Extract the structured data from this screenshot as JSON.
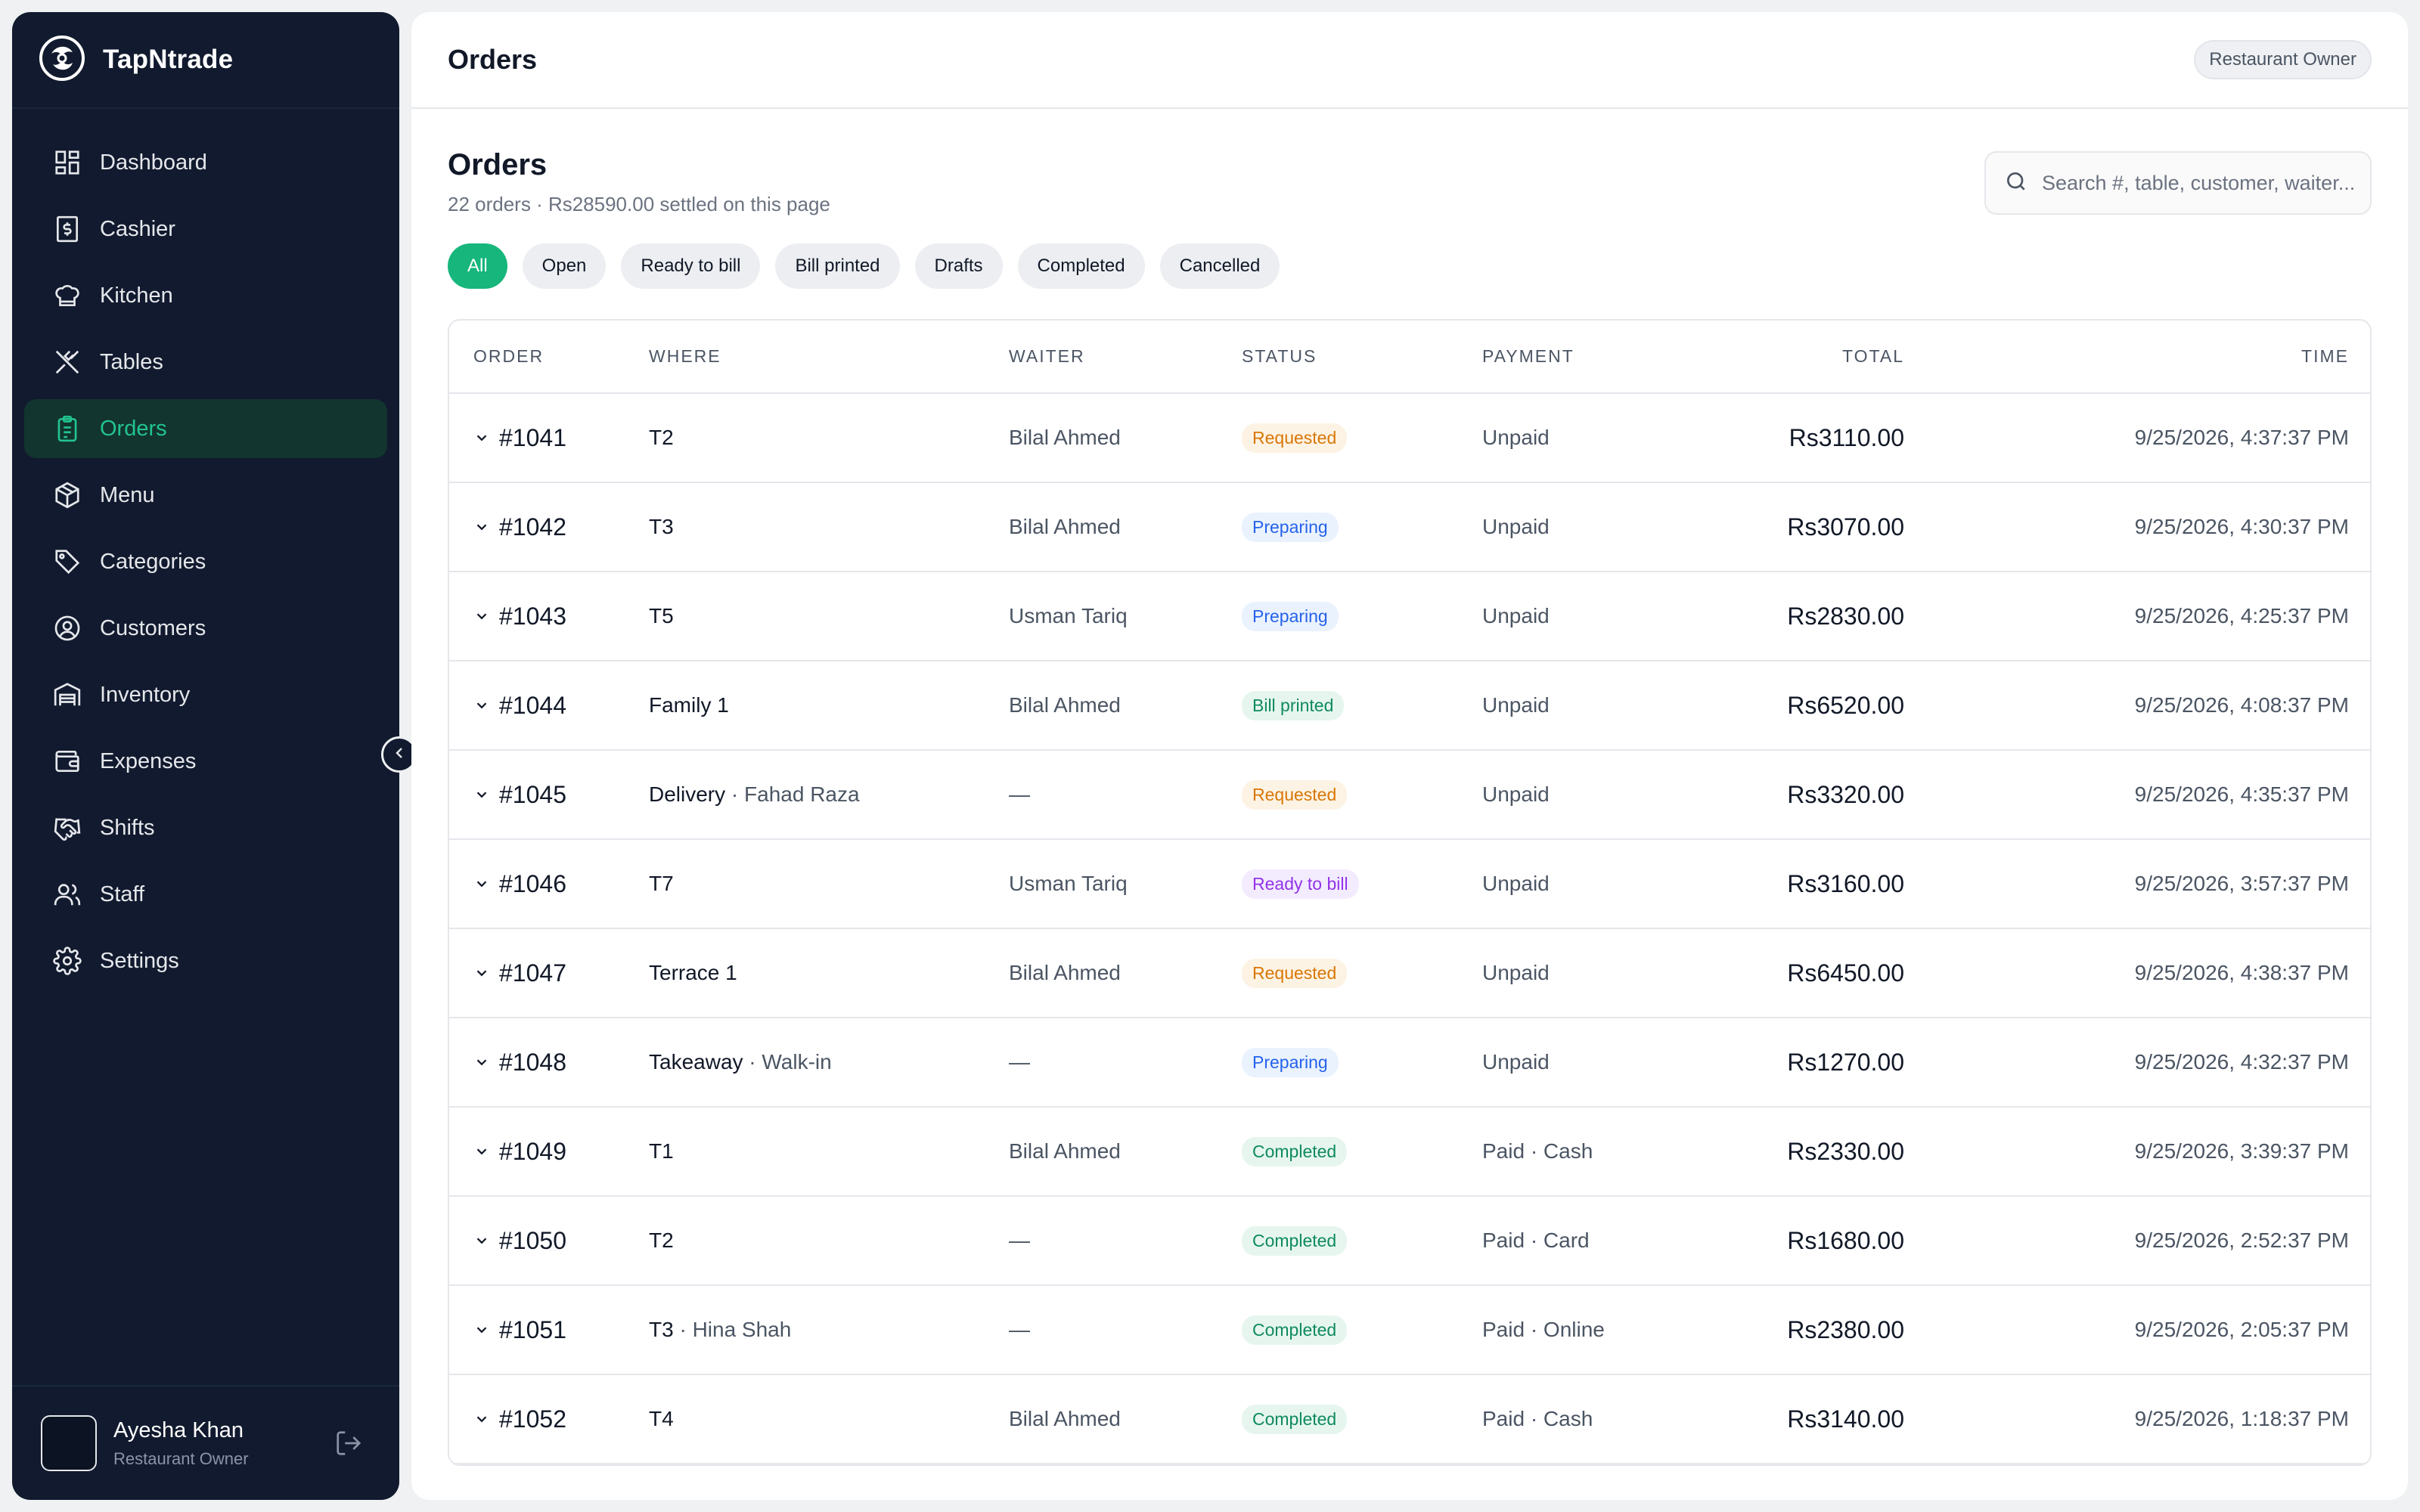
{
  "app": {
    "name": "TapNtrade"
  },
  "sidebar": {
    "items": [
      {
        "label": "Dashboard",
        "icon": "dashboard-icon",
        "active": false
      },
      {
        "label": "Cashier",
        "icon": "cashier-icon",
        "active": false
      },
      {
        "label": "Kitchen",
        "icon": "chef-hat-icon",
        "active": false
      },
      {
        "label": "Tables",
        "icon": "utensils-icon",
        "active": false
      },
      {
        "label": "Orders",
        "icon": "clipboard-icon",
        "active": true
      },
      {
        "label": "Menu",
        "icon": "box-icon",
        "active": false
      },
      {
        "label": "Categories",
        "icon": "tag-icon",
        "active": false
      },
      {
        "label": "Customers",
        "icon": "user-circle-icon",
        "active": false
      },
      {
        "label": "Inventory",
        "icon": "warehouse-icon",
        "active": false
      },
      {
        "label": "Expenses",
        "icon": "wallet-icon",
        "active": false
      },
      {
        "label": "Shifts",
        "icon": "handshake-icon",
        "active": false
      },
      {
        "label": "Staff",
        "icon": "users-icon",
        "active": false
      },
      {
        "label": "Settings",
        "icon": "gear-icon",
        "active": false
      }
    ]
  },
  "user": {
    "name": "Ayesha Khan",
    "role": "Restaurant Owner"
  },
  "topbar": {
    "title": "Orders",
    "role_badge": "Restaurant Owner"
  },
  "page": {
    "title": "Orders",
    "subtitle": "22 orders · Rs28590.00 settled on this page",
    "search_placeholder": "Search #, table, customer, waiter..."
  },
  "filters": [
    "All",
    "Open",
    "Ready to bill",
    "Bill printed",
    "Drafts",
    "Completed",
    "Cancelled"
  ],
  "active_filter": "All",
  "table": {
    "headers": {
      "order": "ORDER",
      "where": "WHERE",
      "waiter": "WAITER",
      "status": "STATUS",
      "payment": "PAYMENT",
      "total": "TOTAL",
      "time": "TIME"
    },
    "rows": [
      {
        "order": "#1041",
        "where": "T2",
        "where_sub": "",
        "waiter": "Bilal Ahmed",
        "status": "Requested",
        "payment": "Unpaid",
        "total": "Rs3110.00",
        "time": "9/25/2026, 4:37:37 PM"
      },
      {
        "order": "#1042",
        "where": "T3",
        "where_sub": "",
        "waiter": "Bilal Ahmed",
        "status": "Preparing",
        "payment": "Unpaid",
        "total": "Rs3070.00",
        "time": "9/25/2026, 4:30:37 PM"
      },
      {
        "order": "#1043",
        "where": "T5",
        "where_sub": "",
        "waiter": "Usman Tariq",
        "status": "Preparing",
        "payment": "Unpaid",
        "total": "Rs2830.00",
        "time": "9/25/2026, 4:25:37 PM"
      },
      {
        "order": "#1044",
        "where": "Family 1",
        "where_sub": "",
        "waiter": "Bilal Ahmed",
        "status": "Bill printed",
        "payment": "Unpaid",
        "total": "Rs6520.00",
        "time": "9/25/2026, 4:08:37 PM"
      },
      {
        "order": "#1045",
        "where": "Delivery",
        "where_sub": " · Fahad Raza",
        "waiter": "—",
        "status": "Requested",
        "payment": "Unpaid",
        "total": "Rs3320.00",
        "time": "9/25/2026, 4:35:37 PM"
      },
      {
        "order": "#1046",
        "where": "T7",
        "where_sub": "",
        "waiter": "Usman Tariq",
        "status": "Ready to bill",
        "payment": "Unpaid",
        "total": "Rs3160.00",
        "time": "9/25/2026, 3:57:37 PM"
      },
      {
        "order": "#1047",
        "where": "Terrace 1",
        "where_sub": "",
        "waiter": "Bilal Ahmed",
        "status": "Requested",
        "payment": "Unpaid",
        "total": "Rs6450.00",
        "time": "9/25/2026, 4:38:37 PM"
      },
      {
        "order": "#1048",
        "where": "Takeaway",
        "where_sub": " · Walk-in",
        "waiter": "—",
        "status": "Preparing",
        "payment": "Unpaid",
        "total": "Rs1270.00",
        "time": "9/25/2026, 4:32:37 PM"
      },
      {
        "order": "#1049",
        "where": "T1",
        "where_sub": "",
        "waiter": "Bilal Ahmed",
        "status": "Completed",
        "payment": "Paid · Cash",
        "total": "Rs2330.00",
        "time": "9/25/2026, 3:39:37 PM"
      },
      {
        "order": "#1050",
        "where": "T2",
        "where_sub": "",
        "waiter": "—",
        "status": "Completed",
        "payment": "Paid · Card",
        "total": "Rs1680.00",
        "time": "9/25/2026, 2:52:37 PM"
      },
      {
        "order": "#1051",
        "where": "T3",
        "where_sub": " · Hina Shah",
        "waiter": "—",
        "status": "Completed",
        "payment": "Paid · Online",
        "total": "Rs2380.00",
        "time": "9/25/2026, 2:05:37 PM"
      },
      {
        "order": "#1052",
        "where": "T4",
        "where_sub": "",
        "waiter": "Bilal Ahmed",
        "status": "Completed",
        "payment": "Paid · Cash",
        "total": "Rs3140.00",
        "time": "9/25/2026, 1:18:37 PM"
      }
    ]
  },
  "colors": {
    "sidebar_bg": "#111a2e",
    "accent": "#16b67c",
    "active_nav_text": "#22c38e",
    "status_requested": "#d97706",
    "status_preparing": "#2563eb",
    "status_bill_printed": "#0f8a5f",
    "status_ready_to_bill": "#9333ea",
    "status_completed": "#0f8a5f"
  }
}
